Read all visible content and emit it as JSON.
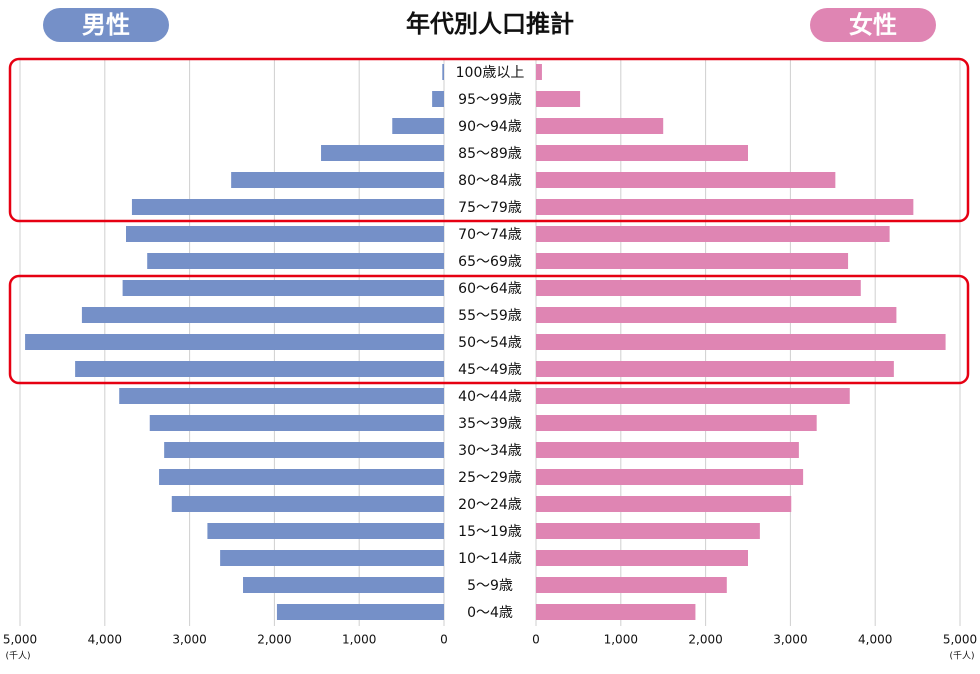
{
  "chart_data": {
    "type": "pyramid",
    "title": "年代別人口推計",
    "x_unit": "(千人)",
    "categories": [
      "100歳以上",
      "95～99歳",
      "90～94歳",
      "85～89歳",
      "80～84歳",
      "75～79歳",
      "70～74歳",
      "65～69歳",
      "60～64歳",
      "55～59歳",
      "50～54歳",
      "45～49歳",
      "40～44歳",
      "35～39歳",
      "30～34歳",
      "25～29歳",
      "20～24歳",
      "15～19歳",
      "10～14歳",
      "5～9歳",
      "0～4歳"
    ],
    "series": [
      {
        "name": "男性",
        "color": "#7590c8",
        "values": [
          20,
          140,
          610,
          1450,
          2510,
          3680,
          3750,
          3500,
          3790,
          4270,
          4940,
          4350,
          3830,
          3470,
          3300,
          3360,
          3210,
          2790,
          2640,
          2370,
          1970
        ]
      },
      {
        "name": "女性",
        "color": "#df85b3",
        "values": [
          70,
          520,
          1500,
          2500,
          3530,
          4450,
          4170,
          3680,
          3830,
          4250,
          4830,
          4220,
          3700,
          3310,
          3100,
          3150,
          3010,
          2640,
          2500,
          2250,
          1880
        ]
      }
    ],
    "xlim": [
      0,
      5000
    ],
    "xticks": [
      0,
      {
        "value": 1000,
        "label": "1,000"
      },
      {
        "value": 2000,
        "label": "2,000"
      },
      {
        "value": 3000,
        "label": "3,000"
      },
      {
        "value": 4000,
        "label": "4,000"
      },
      {
        "value": 5000,
        "label": "5,000"
      }
    ],
    "grid": true
  }
}
